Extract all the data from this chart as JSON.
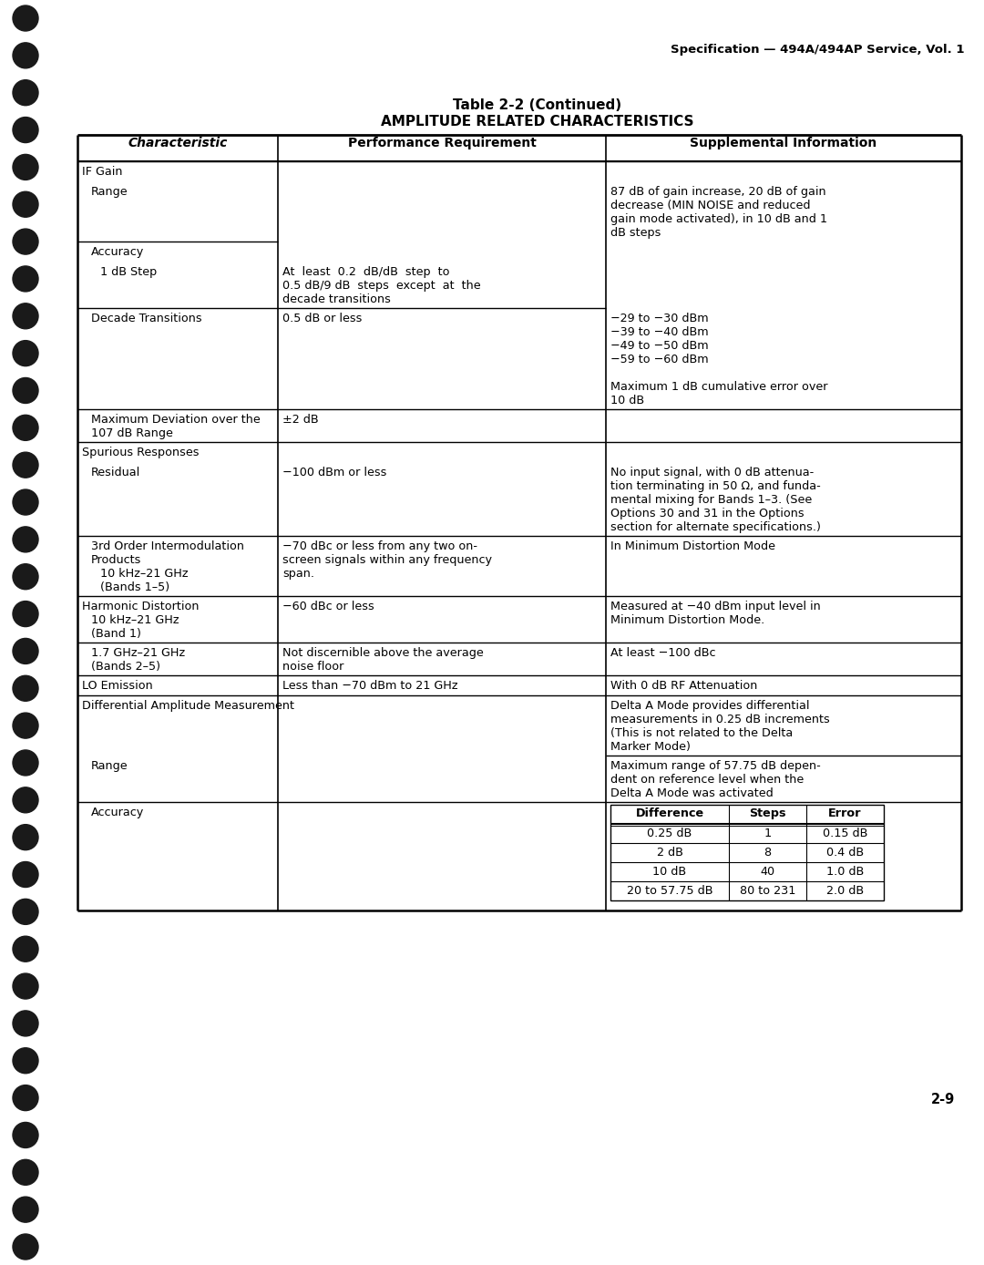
{
  "page_header": "Specification — 494A/494AP Service, Vol. 1",
  "table_title_line1": "Table 2-2 (Continued)",
  "table_title_line2": "AMPLITUDE RELATED CHARACTERISTICS",
  "col_headers": [
    "Characteristic",
    "Performance Requirement",
    "Supplemental Information"
  ],
  "page_number": "2-9",
  "accuracy_table": {
    "headers": [
      "Difference",
      "Steps",
      "Error"
    ],
    "rows": [
      [
        "0.25 dB",
        "1",
        "0.15 dB"
      ],
      [
        "2 dB",
        "8",
        "0.4 dB"
      ],
      [
        "10 dB",
        "40",
        "1.0 dB"
      ],
      [
        "20 to 57.75 dB",
        "80 to 231",
        "2.0 dB"
      ]
    ]
  },
  "bg_color": "#ffffff",
  "text_color": "#000000"
}
